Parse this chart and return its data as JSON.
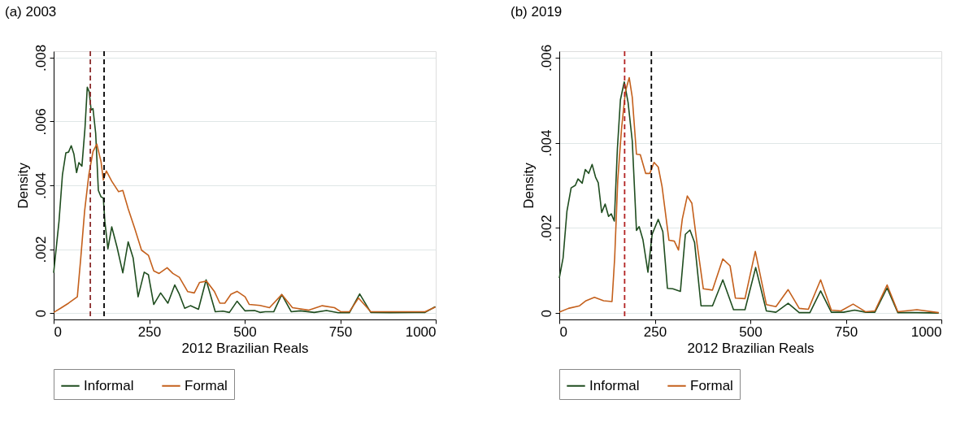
{
  "chart_data": [
    {
      "type": "line",
      "title": "(a) 2003",
      "xlabel": "2012 Brazilian Reals",
      "ylabel": "Density",
      "xlim": [
        0,
        1000
      ],
      "xticks": [
        0,
        250,
        500,
        750,
        1000
      ],
      "ylim": [
        -0.0002,
        0.0082
      ],
      "yticks": [
        0,
        {
          "value": 0.002,
          "label": ".002"
        },
        {
          "value": 0.004,
          "label": ".004"
        },
        {
          "value": 0.006,
          "label": ".006"
        },
        {
          "value": 0.008,
          "label": ".008"
        }
      ],
      "grid": "y",
      "legend": "bottom",
      "marker": "none",
      "line_style": "solid",
      "series": [
        {
          "name": "Informal",
          "color": "#1f4d1f",
          "x": [
            0,
            14,
            23,
            32,
            39,
            46,
            53,
            60,
            66,
            74,
            82,
            88,
            93,
            98,
            103,
            110,
            117,
            124,
            130,
            134,
            142,
            152,
            166,
            181,
            195,
            208,
            221,
            237,
            248,
            262,
            280,
            299,
            317,
            329,
            343,
            358,
            379,
            399,
            423,
            443,
            460,
            480,
            501,
            526,
            540,
            554,
            576,
            597,
            622,
            646,
            682,
            714,
            745,
            774,
            801,
            830,
            880,
            972,
            999
          ],
          "values": [
            0.00126,
            0.00287,
            0.00433,
            0.00502,
            0.00504,
            0.00524,
            0.00498,
            0.0044,
            0.00471,
            0.0046,
            0.00579,
            0.00707,
            0.00693,
            0.00636,
            0.0064,
            0.00563,
            0.00384,
            0.00364,
            0.0036,
            0.00287,
            0.00201,
            0.0027,
            0.00206,
            0.00126,
            0.00223,
            0.00173,
            0.00051,
            0.00128,
            0.0012,
            0.00027,
            0.00063,
            0.00031,
            0.00088,
            0.00059,
            0.00015,
            0.00023,
            0.00012,
            0.00104,
            4e-05,
            6e-05,
            2e-05,
            0.00037,
            7e-05,
            8e-05,
            2e-05,
            4e-05,
            4e-05,
            0.00058,
            4e-05,
            7e-05,
            2e-05,
            8e-05,
            1e-05,
            1e-05,
            0.0006,
            2e-05,
            1e-05,
            2e-05,
            0.0002
          ]
        },
        {
          "name": "Formal",
          "color": "#c4601c",
          "x": [
            0,
            18,
            39,
            62,
            71,
            81,
            92,
            103,
            113,
            124,
            130,
            138,
            152,
            170,
            181,
            195,
            212,
            230,
            248,
            262,
            276,
            297,
            312,
            329,
            351,
            368,
            382,
            400,
            421,
            435,
            448,
            464,
            480,
            501,
            512,
            540,
            565,
            597,
            625,
            668,
            703,
            735,
            752,
            774,
            798,
            830,
            880,
            972,
            999
          ],
          "values": [
            2e-05,
            0.00015,
            0.00031,
            0.00051,
            0.00173,
            0.00319,
            0.00433,
            0.00506,
            0.00529,
            0.00474,
            0.00417,
            0.00445,
            0.00413,
            0.0038,
            0.00384,
            0.00327,
            0.00266,
            0.00197,
            0.00181,
            0.00132,
            0.00124,
            0.00142,
            0.00124,
            0.00112,
            0.00067,
            0.00063,
            0.00096,
            0.001,
            0.00067,
            0.00031,
            0.00031,
            0.00059,
            0.00068,
            0.00051,
            0.00027,
            0.00024,
            0.00017,
            0.00058,
            0.00017,
            9e-05,
            0.00023,
            0.00017,
            4e-05,
            4e-05,
            0.00047,
            4e-05,
            4e-05,
            4e-05,
            0.00019
          ]
        }
      ],
      "ref_lines": [
        {
          "axis": "x",
          "value": 96,
          "color": "#8b2b2b",
          "line_style": "dashed"
        },
        {
          "axis": "x",
          "value": 132,
          "color": "#000000",
          "line_style": "dashed"
        }
      ]
    },
    {
      "type": "line",
      "title": "(b) 2019",
      "xlabel": "2012 Brazilian Reals",
      "ylabel": "Density",
      "xlim": [
        0,
        1000
      ],
      "xticks": [
        0,
        250,
        500,
        750,
        1000
      ],
      "ylim": [
        -0.00015,
        0.00615
      ],
      "yticks": [
        0,
        {
          "value": 0.002,
          "label": ".002"
        },
        {
          "value": 0.004,
          "label": ".004"
        },
        {
          "value": 0.006,
          "label": ".006"
        }
      ],
      "grid": "y",
      "legend": "bottom",
      "marker": "none",
      "line_style": "solid",
      "series": [
        {
          "name": "Informal",
          "color": "#1f4d1f",
          "x": [
            0,
            10,
            20,
            31,
            42,
            49,
            60,
            68,
            77,
            86,
            95,
            102,
            111,
            120,
            129,
            136,
            144,
            152,
            160,
            170,
            180,
            191,
            202,
            209,
            219,
            232,
            243,
            259,
            271,
            283,
            297,
            317,
            330,
            342,
            354,
            371,
            401,
            428,
            456,
            486,
            514,
            542,
            567,
            599,
            628,
            656,
            684,
            712,
            744,
            773,
            802,
            826,
            858,
            886,
            936,
            993
          ],
          "values": [
            0.00082,
            0.0013,
            0.00239,
            0.00294,
            0.003,
            0.00315,
            0.00305,
            0.00337,
            0.00328,
            0.00349,
            0.00319,
            0.00306,
            0.00236,
            0.00256,
            0.00227,
            0.00233,
            0.00216,
            0.00385,
            0.00501,
            0.00543,
            0.00495,
            0.00404,
            0.00194,
            0.00203,
            0.00172,
            0.00096,
            0.00185,
            0.0022,
            0.00191,
            0.00058,
            0.00057,
            0.00051,
            0.00185,
            0.00195,
            0.00166,
            0.00017,
            0.00017,
            0.00078,
            8e-05,
            8e-05,
            0.00107,
            5e-05,
            2e-05,
            0.00023,
            1e-05,
            1e-05,
            0.00052,
            2e-05,
            2e-05,
            7e-05,
            2e-05,
            2e-05,
            0.00059,
            1e-05,
            1e-05,
            0
          ]
        },
        {
          "name": "Formal",
          "color": "#c4601c",
          "x": [
            0,
            24,
            53,
            70,
            92,
            116,
            138,
            145,
            153,
            163,
            173,
            183,
            191,
            202,
            212,
            226,
            237,
            248,
            259,
            269,
            287,
            301,
            312,
            322,
            335,
            347,
            361,
            377,
            401,
            428,
            447,
            461,
            486,
            513,
            542,
            567,
            599,
            628,
            652,
            684,
            712,
            737,
            769,
            802,
            826,
            858,
            886,
            936,
            993
          ],
          "values": [
            2e-05,
            0.00011,
            0.00017,
            0.00029,
            0.00037,
            0.00029,
            0.00027,
            0.0013,
            0.00312,
            0.00434,
            0.0052,
            0.00553,
            0.00507,
            0.00373,
            0.00372,
            0.00328,
            0.00328,
            0.00354,
            0.00343,
            0.00297,
            0.00171,
            0.00169,
            0.00148,
            0.00221,
            0.00275,
            0.00258,
            0.0016,
            0.00057,
            0.00054,
            0.00127,
            0.00111,
            0.00035,
            0.00034,
            0.00145,
            0.0002,
            0.00015,
            0.00055,
            0.00011,
            9e-05,
            0.00078,
            7e-05,
            5e-05,
            0.00021,
            3e-05,
            5e-05,
            0.00066,
            3e-05,
            8e-05,
            1e-05
          ]
        }
      ],
      "ref_lines": [
        {
          "axis": "x",
          "value": 171,
          "color": "#b22222",
          "line_style": "dashed"
        },
        {
          "axis": "x",
          "value": 241,
          "color": "#000000",
          "line_style": "dashed"
        }
      ]
    }
  ]
}
